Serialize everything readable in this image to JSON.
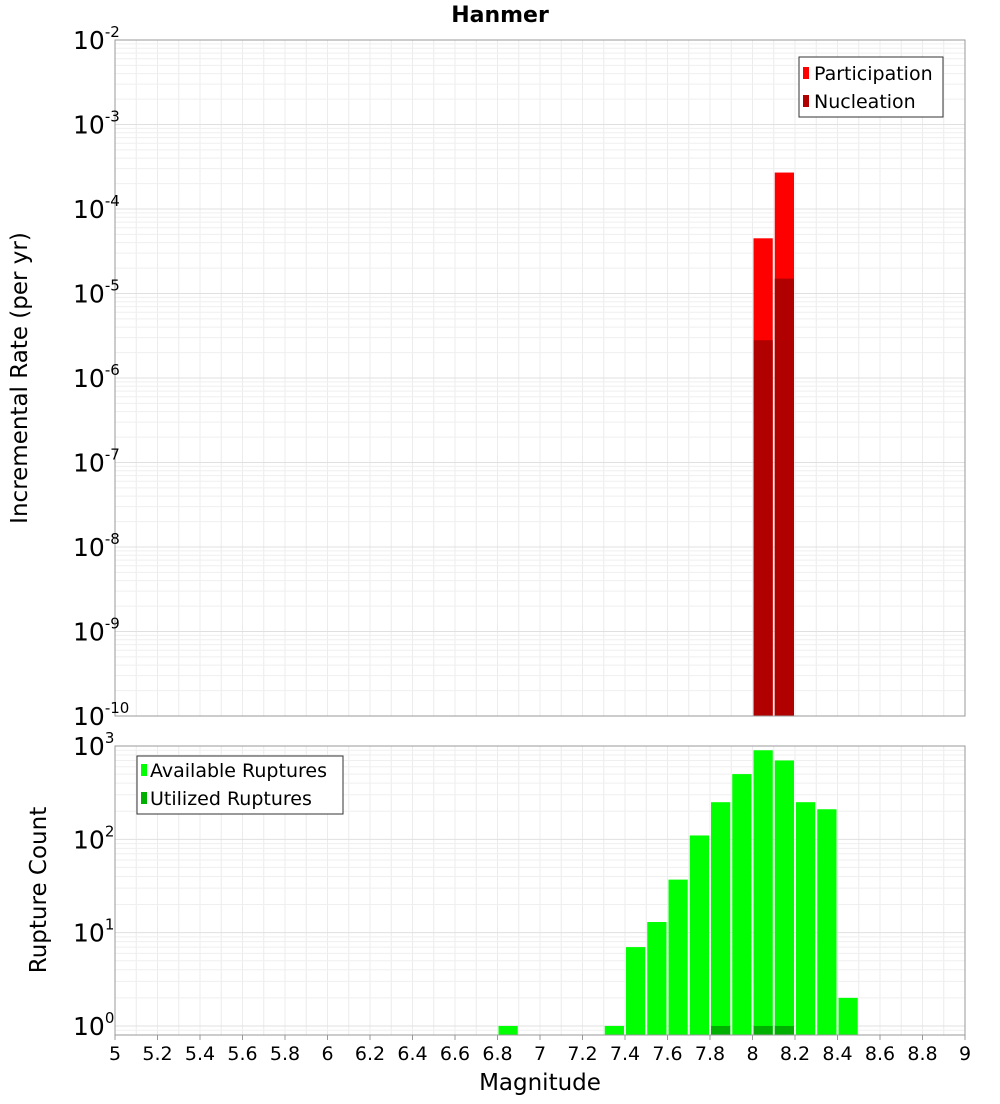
{
  "chart_data": [
    {
      "type": "bar",
      "title": "Hanmer",
      "ylabel": "Incremental Rate (per yr)",
      "xlabel": "",
      "y_scale": "log",
      "ylim": [
        1e-10,
        0.01
      ],
      "xlim": [
        5,
        9
      ],
      "y_ticks": [
        {
          "base": "10",
          "exp": "-2"
        },
        {
          "base": "10",
          "exp": "-3"
        },
        {
          "base": "10",
          "exp": "-4"
        },
        {
          "base": "10",
          "exp": "-5"
        },
        {
          "base": "10",
          "exp": "-6"
        },
        {
          "base": "10",
          "exp": "-7"
        },
        {
          "base": "10",
          "exp": "-8"
        },
        {
          "base": "10",
          "exp": "-9"
        },
        {
          "base": "10",
          "exp": "-10"
        }
      ],
      "legend_position": "top-right",
      "grid": true,
      "bin_width": 0.1,
      "series": [
        {
          "name": "Participation",
          "color": "#ff0000",
          "x": [
            8.05,
            8.15
          ],
          "values": [
            4.5e-05,
            0.00027
          ]
        },
        {
          "name": "Nucleation",
          "color": "#b00000",
          "x": [
            8.05,
            8.15
          ],
          "values": [
            2.8e-06,
            1.5e-05
          ]
        }
      ]
    },
    {
      "type": "bar",
      "ylabel": "Rupture Count",
      "xlabel": "Magnitude",
      "y_scale": "log",
      "ylim": [
        0.8,
        1000
      ],
      "xlim": [
        5,
        9
      ],
      "y_ticks": [
        {
          "base": "10",
          "exp": "3"
        },
        {
          "base": "10",
          "exp": "2"
        },
        {
          "base": "10",
          "exp": "1"
        },
        {
          "base": "10",
          "exp": "0"
        }
      ],
      "x_ticks": [
        "5",
        "5.2",
        "5.4",
        "5.6",
        "5.8",
        "6",
        "6.2",
        "6.4",
        "6.6",
        "6.8",
        "7",
        "7.2",
        "7.4",
        "7.6",
        "7.8",
        "8",
        "8.2",
        "8.4",
        "8.6",
        "8.8",
        "9"
      ],
      "legend_position": "top-left",
      "grid": true,
      "bin_width": 0.1,
      "series": [
        {
          "name": "Available Ruptures",
          "color": "#00ff00",
          "x": [
            6.85,
            7.35,
            7.45,
            7.55,
            7.65,
            7.75,
            7.85,
            7.95,
            8.05,
            8.15,
            8.25,
            8.35,
            8.45
          ],
          "values": [
            1,
            1,
            7,
            13,
            37,
            110,
            250,
            500,
            900,
            700,
            250,
            210,
            2
          ]
        },
        {
          "name": "Utilized Ruptures",
          "color": "#00b000",
          "x": [
            7.85,
            8.05,
            8.15
          ],
          "values": [
            1,
            1,
            1
          ]
        }
      ]
    }
  ]
}
